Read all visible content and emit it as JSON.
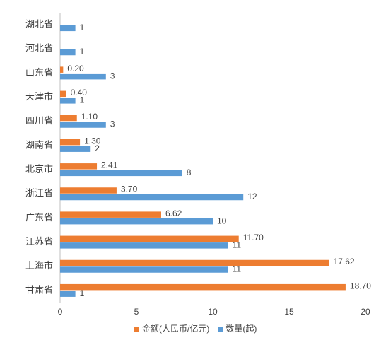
{
  "chart_data": {
    "type": "bar",
    "orientation": "horizontal",
    "categories": [
      "湖北省",
      "河北省",
      "山东省",
      "天津市",
      "四川省",
      "湖南省",
      "北京市",
      "浙江省",
      "广东省",
      "江苏省",
      "上海市",
      "甘肃省"
    ],
    "series": [
      {
        "name": "金额(人民币/亿元)",
        "color": "#ed7d31",
        "values": [
          null,
          null,
          0.2,
          0.4,
          1.1,
          1.3,
          2.41,
          3.7,
          6.62,
          11.7,
          17.62,
          18.7
        ],
        "value_labels": [
          null,
          null,
          "0.20",
          "0.40",
          "1.10",
          "1.30",
          "2.41",
          "3.70",
          "6.62",
          "11.70",
          "17.62",
          "18.70"
        ]
      },
      {
        "name": "数量(起)",
        "color": "#5b9bd5",
        "values": [
          1,
          1,
          3,
          1,
          3,
          2,
          8,
          12,
          10,
          11,
          11,
          1
        ]
      }
    ],
    "xlim": [
      0,
      20
    ],
    "xticks": [
      0,
      5,
      10,
      15,
      20
    ],
    "legend": "bottom"
  }
}
